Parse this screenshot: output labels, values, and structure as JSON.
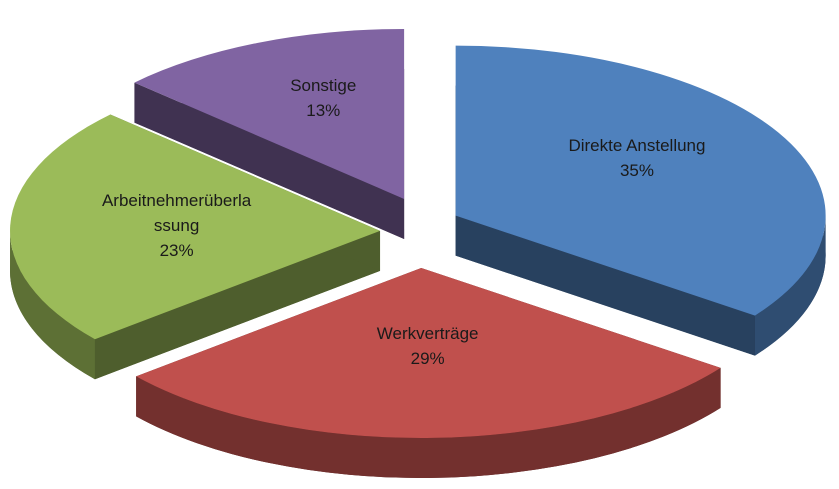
{
  "chart_data": {
    "type": "pie3d",
    "categories": [
      "Direkte Anstellung",
      "Werkverträge",
      "Arbeitnehmerüberlassung",
      "Sonstige"
    ],
    "values": [
      35,
      29,
      23,
      13
    ],
    "value_labels": [
      "35%",
      "29%",
      "23%",
      "13%"
    ],
    "colors": [
      "#4f81bd",
      "#c0504d",
      "#9bbb59",
      "#8064a2"
    ]
  }
}
